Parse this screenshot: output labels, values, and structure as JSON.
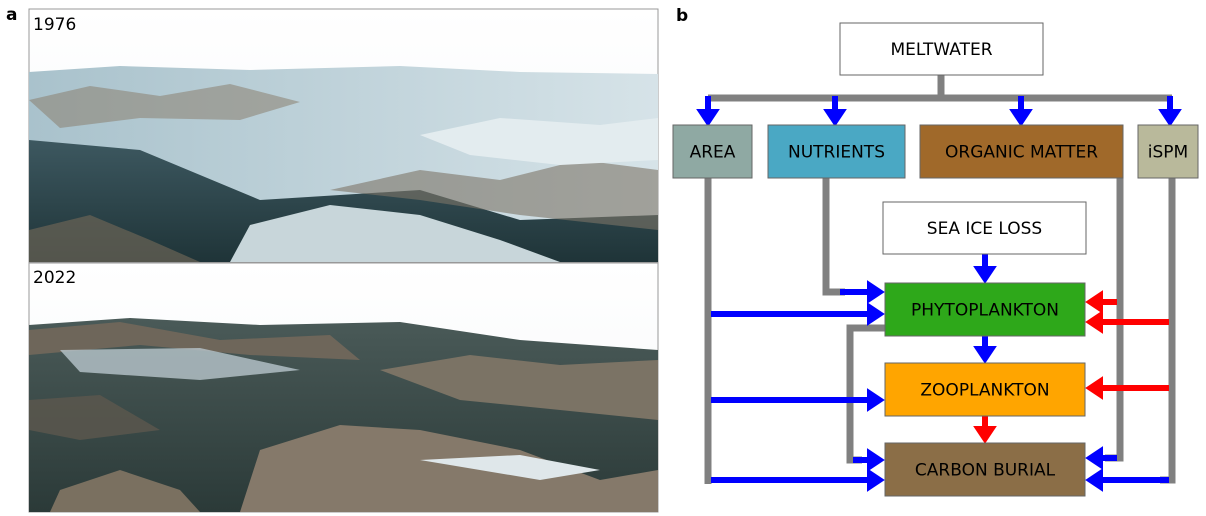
{
  "panel_a": {
    "label": "a",
    "images": [
      {
        "year": "1976"
      },
      {
        "year": "2022"
      }
    ]
  },
  "panel_b": {
    "label": "b",
    "nodes": [
      {
        "id": "meltwater",
        "label": "MELTWATER"
      },
      {
        "id": "area",
        "label": "AREA"
      },
      {
        "id": "nutrients",
        "label": "NUTRIENTS"
      },
      {
        "id": "organic",
        "label": "ORGANIC MATTER"
      },
      {
        "id": "ispm",
        "label": "iSPM"
      },
      {
        "id": "seaice",
        "label": "SEA ICE LOSS"
      },
      {
        "id": "phyto",
        "label": "PHYTOPLANKTON"
      },
      {
        "id": "zoo",
        "label": "ZOOPLANKTON"
      },
      {
        "id": "carbon",
        "label": "CARBON BURIAL"
      }
    ]
  }
}
